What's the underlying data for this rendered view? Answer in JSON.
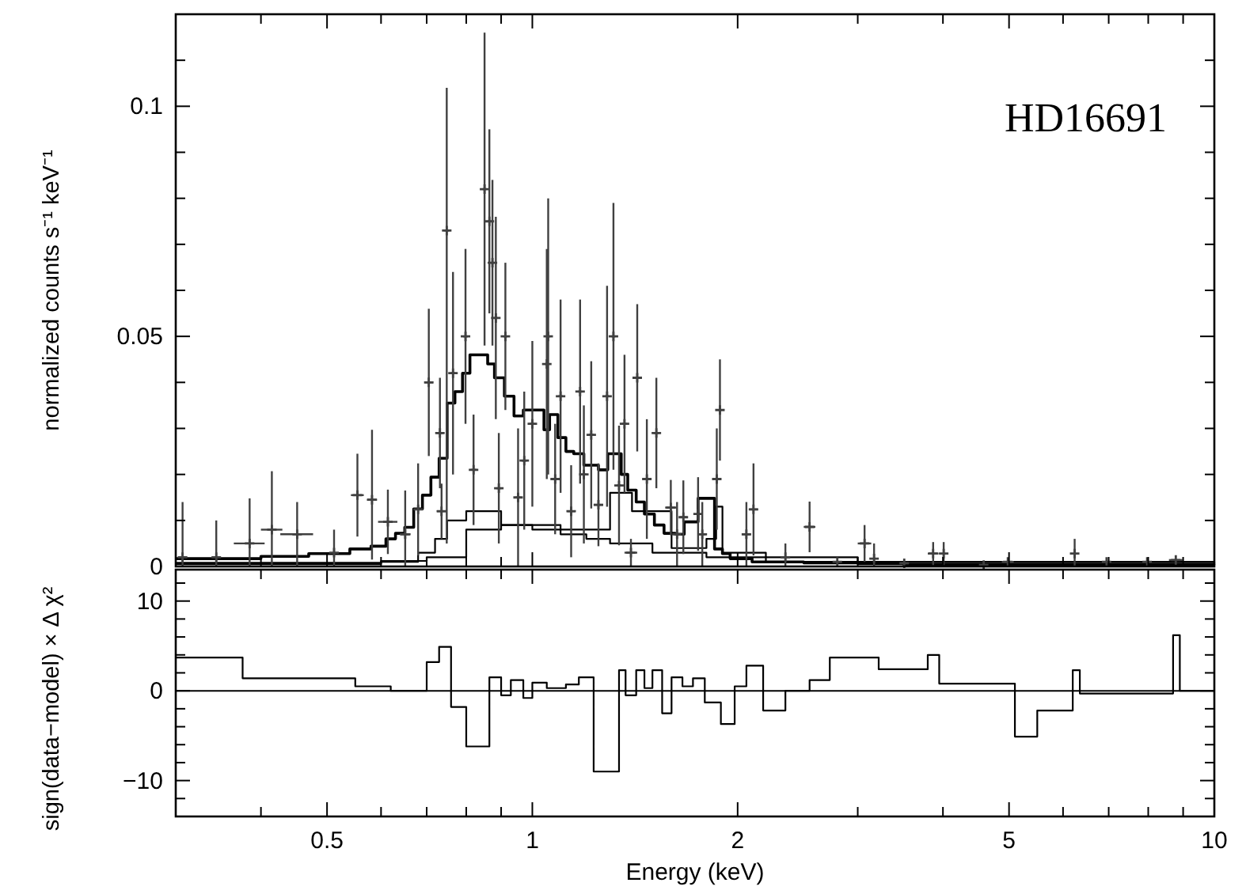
{
  "chart_data": [
    {
      "type": "scatter",
      "ylabel": "normalized counts s⁻¹ keV⁻¹",
      "annotations": [
        "HD16691"
      ],
      "log": "x",
      "xlim": [
        0.3,
        10
      ],
      "ylim": [
        0,
        0.12
      ],
      "tick_labels": "y",
      "xticks": [
        {
          "value": 0.4,
          "label": null
        },
        0.5,
        {
          "value": 0.6,
          "label": null
        },
        {
          "value": 0.7,
          "label": null
        },
        {
          "value": 0.8,
          "label": null
        },
        {
          "value": 0.9,
          "label": null
        },
        1,
        2,
        {
          "value": 3,
          "label": null
        },
        {
          "value": 4,
          "label": null
        },
        5,
        {
          "value": 6,
          "label": null
        },
        {
          "value": 7,
          "label": null
        },
        {
          "value": 8,
          "label": null
        },
        {
          "value": 9,
          "label": null
        },
        10
      ],
      "yticks": [
        0,
        {
          "value": 0.01,
          "label": null
        },
        {
          "value": 0.02,
          "label": null
        },
        {
          "value": 0.03,
          "label": null
        },
        {
          "value": 0.04,
          "label": null
        },
        0.05,
        {
          "value": 0.06,
          "label": null
        },
        {
          "value": 0.07,
          "label": null
        },
        {
          "value": 0.08,
          "label": null
        },
        {
          "value": 0.09,
          "label": null
        },
        0.1,
        {
          "value": 0.11,
          "label": null
        }
      ],
      "series": [
        {
          "color": "#404040",
          "marker": "cross",
          "x": [
            0.307,
            0.344,
            0.385,
            0.415,
            0.452,
            0.512,
            0.554,
            0.582,
            0.614,
            0.651,
            0.68,
            0.705,
            0.732,
            0.736,
            0.749,
            0.765,
            0.798,
            0.82,
            0.851,
            0.865,
            0.874,
            0.884,
            0.893,
            0.913,
            0.953,
            0.973,
            1.0,
            1.05,
            1.055,
            1.08,
            1.1,
            1.14,
            1.175,
            1.19,
            1.22,
            1.25,
            1.287,
            1.315,
            1.34,
            1.365,
            1.395,
            1.425,
            1.472,
            1.52,
            1.596,
            1.63,
            1.665,
            1.75,
            1.775,
            1.864,
            1.884,
            2.06,
            2.11,
            2.35,
            2.55,
            2.8,
            3.07,
            3.17,
            3.51,
            3.87,
            4.01,
            4.59,
            4.98,
            6.24,
            6.95,
            7.97,
            8.78
          ],
          "values": [
            0.002,
            0.002,
            0.005,
            0.008,
            0.007,
            0.003,
            0.0155,
            0.0145,
            0.0097,
            0.007,
            0.0124,
            0.04,
            0.029,
            0.012,
            0.073,
            0.042,
            0.05,
            0.021,
            0.082,
            0.075,
            0.066,
            0.054,
            0.017,
            0.05,
            0.015,
            0.023,
            0.031,
            0.044,
            0.05,
            0.019,
            0.037,
            0.012,
            0.038,
            0.02,
            0.0286,
            0.0134,
            0.037,
            0.05,
            0.0176,
            0.031,
            0.003,
            0.041,
            0.019,
            0.029,
            0.0128,
            0.007,
            0.0107,
            0.0114,
            0.007,
            0.019,
            0.034,
            0.007,
            0.0124,
            0.002,
            0.0086,
            0.001,
            0.005,
            0.0017,
            0.0007,
            0.0028,
            0.0028,
            0.0003,
            0.001,
            0.0028,
            0.001,
            0.001,
            0.0014
          ],
          "errors": [
            [
              0,
              0.014
            ],
            [
              0,
              0.01
            ],
            [
              0,
              0.0148
            ],
            [
              0,
              0.0207
            ],
            0.007,
            [
              0,
              0.008
            ],
            0.009,
            [
              0.0015,
              0.0297
            ],
            0.007,
            [
              0,
              0.0165
            ],
            0.01,
            0.016,
            0.012,
            0.006,
            [
              0.005,
              0.104
            ],
            0.022,
            0.019,
            0.012,
            [
              0.048,
              0.116
            ],
            0.02,
            0.018,
            0.022,
            0.012,
            0.016,
            0.015,
            0.015,
            0.018,
            0.025,
            0.03,
            0.012,
            0.021,
            0.01,
            0.02,
            0.015,
            0.016,
            0.009,
            0.024,
            0.029,
            0.013,
            0.015,
            0.003,
            0.016,
            0.013,
            0.012,
            0.006,
            0.007,
            0.008,
            0.008,
            0.007,
            0.011,
            0.011,
            0.007,
            0.01,
            [
              0,
              0.005
            ],
            0.0055,
            null,
            0.004,
            [
              0,
              0.005
            ],
            null,
            0.0025,
            0.0025,
            null,
            null,
            [
              0,
              0.006
            ],
            null,
            null,
            null
          ],
          "xerrors": [
            null,
            null,
            0.02,
            0.015,
            0.025,
            null,
            0.012,
            0.01,
            0.02,
            0.012,
            null,
            0.01,
            0.008,
            0.012,
            0.006,
            0.006,
            0.006,
            0.008,
            0.005,
            0.005,
            0.005,
            0.005,
            0.008,
            0.006,
            0.008,
            0.008,
            0.008,
            0.008,
            0.008,
            0.01,
            0.008,
            0.015,
            0.008,
            0.01,
            0.01,
            0.02,
            0.008,
            0.008,
            0.01,
            0.01,
            0.03,
            0.01,
            0.01,
            0.015,
            0.03,
            0.02,
            0.02,
            null,
            0.02,
            0.015,
            0.01,
            0.03,
            0.03,
            null,
            0.05,
            null,
            0.07,
            null,
            0.05,
            0.07,
            null,
            null,
            0.1,
            null,
            null,
            null,
            0.2
          ]
        },
        {
          "type": "step",
          "color": "#000000",
          "x": [
            0.3,
            0.4,
            0.47,
            0.54,
            0.58,
            0.61,
            0.63,
            0.65,
            0.67,
            0.69,
            0.71,
            0.73,
            0.75,
            0.77,
            0.79,
            0.81,
            0.84,
            0.86,
            0.88,
            0.91,
            0.94,
            0.97,
            1.0,
            1.04,
            1.06,
            1.09,
            1.12,
            1.15,
            1.19,
            1.25,
            1.29,
            1.32,
            1.35,
            1.38,
            1.42,
            1.46,
            1.51,
            1.56,
            1.62,
            1.67,
            1.75,
            1.79,
            1.85,
            1.9,
            1.95,
            2.1,
            2.5,
            3.5,
            10
          ],
          "values": [
            0.0017,
            0.0022,
            0.0028,
            0.0038,
            0.0044,
            0.006,
            0.0072,
            0.0085,
            0.0125,
            0.0155,
            0.0194,
            0.0235,
            0.0355,
            0.038,
            0.042,
            0.046,
            0.046,
            0.044,
            0.041,
            0.037,
            0.0327,
            0.034,
            0.034,
            0.0297,
            0.033,
            0.028,
            0.025,
            0.0245,
            0.022,
            0.021,
            0.0245,
            0.0245,
            0.02,
            0.0166,
            0.014,
            0.0114,
            0.009,
            0.0072,
            0.007,
            0.0097,
            0.0148,
            0.0148,
            0.0038,
            0.0028,
            0.0017,
            0.001,
            0.0008,
            0.0005,
            0.0005
          ]
        },
        {
          "type": "step",
          "color": "#000000",
          "x": [
            0.3,
            0.6,
            0.68,
            0.72,
            0.75,
            0.8,
            0.9,
            1.0,
            1.1,
            1.2,
            1.3,
            1.5,
            1.8,
            2.2,
            3,
            10
          ],
          "values": [
            0.0005,
            0.001,
            0.003,
            0.006,
            0.01,
            0.012,
            0.009,
            0.008,
            0.007,
            0.006,
            0.005,
            0.003,
            0.002,
            0.001,
            0.0005,
            0.0002
          ]
        },
        {
          "type": "step",
          "color": "#000000",
          "x": [
            0.3,
            0.6,
            0.7,
            0.8,
            0.9,
            1.0,
            1.1,
            1.3,
            1.4,
            1.6,
            1.8,
            1.86,
            1.9,
            2.2,
            3,
            10
          ],
          "values": [
            0.0008,
            0.0012,
            0.002,
            0.008,
            0.009,
            0.009,
            0.008,
            0.016,
            0.012,
            0.004,
            0.006,
            0.013,
            0.003,
            0.002,
            0.001,
            0.0003
          ]
        }
      ]
    },
    {
      "type": "step",
      "xlabel": "Energy (keV)",
      "ylabel": "sign(data−model) × Δ χ²",
      "log": "x",
      "xlim": [
        0.3,
        10
      ],
      "ylim": [
        -14,
        13.5
      ],
      "xticks": [
        {
          "value": 0.4,
          "label": null
        },
        0.5,
        {
          "value": 0.6,
          "label": null
        },
        {
          "value": 0.7,
          "label": null
        },
        {
          "value": 0.8,
          "label": null
        },
        {
          "value": 0.9,
          "label": null
        },
        1,
        2,
        {
          "value": 3,
          "label": null
        },
        {
          "value": 4,
          "label": null
        },
        5,
        {
          "value": 6,
          "label": null
        },
        {
          "value": 7,
          "label": null
        },
        {
          "value": 8,
          "label": null
        },
        {
          "value": 9,
          "label": null
        },
        10
      ],
      "yticks": [
        {
          "value": -12,
          "label": null
        },
        {
          "value": -10,
          "label": "−10"
        },
        {
          "value": -8,
          "label": null
        },
        {
          "value": -6,
          "label": null
        },
        {
          "value": -4,
          "label": null
        },
        {
          "value": -2,
          "label": null
        },
        0,
        {
          "value": 2,
          "label": null
        },
        {
          "value": 4,
          "label": null
        },
        {
          "value": 6,
          "label": null
        },
        {
          "value": 8,
          "label": null
        },
        10,
        {
          "value": 12,
          "label": null
        }
      ],
      "ref_lines": [
        {
          "axis": "y",
          "value": 0,
          "color": "#000000"
        }
      ],
      "series": [
        {
          "color": "#000000",
          "x": [
            0.3,
            0.376,
            0.55,
            0.62,
            0.7,
            0.73,
            0.76,
            0.8,
            0.865,
            0.9,
            0.93,
            0.97,
            1.0,
            1.05,
            1.12,
            1.17,
            1.23,
            1.34,
            1.37,
            1.42,
            1.46,
            1.5,
            1.55,
            1.6,
            1.66,
            1.72,
            1.79,
            1.89,
            1.98,
            2.06,
            2.18,
            2.35,
            2.55,
            2.73,
            3.22,
            3.8,
            3.95,
            5.1,
            5.5,
            6.2,
            6.35,
            8.7,
            8.9,
            10
          ],
          "values": [
            3.7,
            1.4,
            0.5,
            0,
            3.2,
            4.9,
            -1.8,
            -6.2,
            1.5,
            -0.5,
            1.2,
            -0.8,
            0.9,
            0.3,
            0.7,
            1.5,
            -9.0,
            2.3,
            -0.5,
            2.3,
            0.3,
            2.3,
            -2.5,
            1.5,
            0.5,
            1.4,
            -1.3,
            -3.7,
            0.5,
            2.8,
            -2.2,
            0,
            1.2,
            3.7,
            2.4,
            4.0,
            0.8,
            -5.1,
            -2.2,
            2.3,
            -0.3,
            6.2,
            0,
            0
          ]
        }
      ]
    }
  ]
}
